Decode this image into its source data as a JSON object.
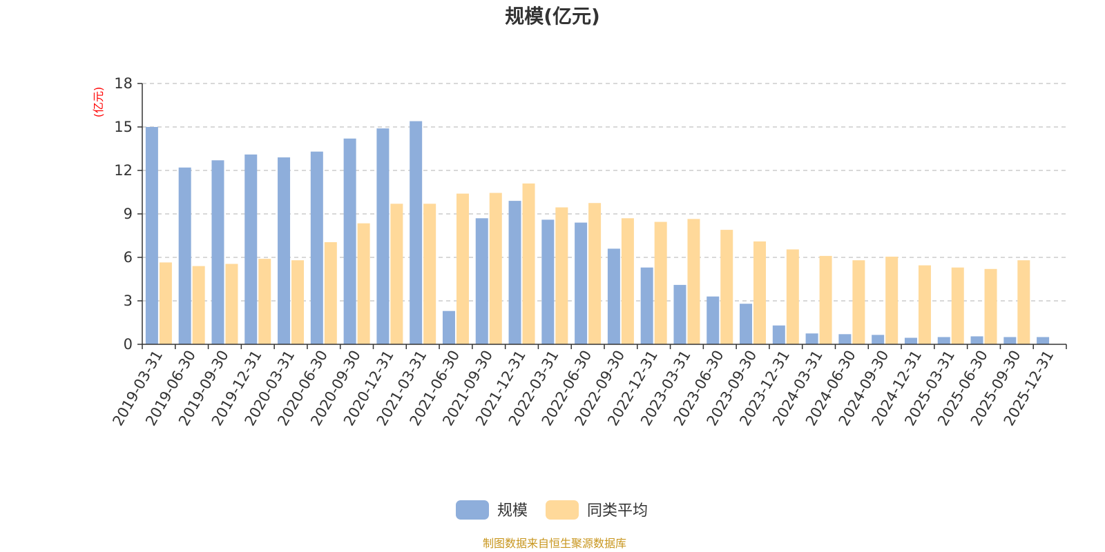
{
  "chart_data": {
    "type": "bar",
    "title": "规模(亿元)",
    "ylabel": "(亿元)",
    "xlabel": "",
    "ylim": [
      0,
      18
    ],
    "yticks": [
      0,
      3,
      6,
      9,
      12,
      15,
      18
    ],
    "grid": true,
    "legend_position": "bottom-center",
    "categories": [
      "2019-03-31",
      "2019-06-30",
      "2019-09-30",
      "2019-12-31",
      "2020-03-31",
      "2020-06-30",
      "2020-09-30",
      "2020-12-31",
      "2021-03-31",
      "2021-06-30",
      "2021-09-30",
      "2021-12-31",
      "2022-03-31",
      "2022-06-30",
      "2022-09-30",
      "2022-12-31",
      "2023-03-31",
      "2023-06-30",
      "2023-09-30",
      "2023-12-31",
      "2024-03-31",
      "2024-06-30",
      "2024-09-30",
      "2024-12-31",
      "2025-03-31",
      "2025-06-30",
      "2025-09-30",
      "2025-12-31"
    ],
    "series": [
      {
        "name": "规模",
        "color": "#8eaedb",
        "values": [
          15.0,
          12.2,
          12.7,
          13.1,
          12.9,
          13.3,
          14.2,
          14.9,
          15.4,
          2.3,
          8.7,
          9.9,
          8.6,
          8.4,
          6.6,
          5.3,
          4.1,
          3.3,
          2.8,
          1.3,
          0.75,
          0.7,
          0.65,
          0.45,
          0.5,
          0.55,
          0.5,
          0.5
        ]
      },
      {
        "name": "同类平均",
        "color": "#ffd99a",
        "values": [
          5.65,
          5.4,
          5.55,
          5.9,
          5.8,
          7.05,
          8.35,
          9.7,
          9.7,
          10.4,
          10.45,
          11.1,
          9.45,
          9.75,
          8.7,
          8.45,
          8.65,
          7.9,
          7.1,
          6.55,
          6.1,
          5.8,
          6.05,
          5.45,
          5.3,
          5.2,
          5.8,
          null
        ]
      }
    ],
    "source_note": "制图数据来自恒生聚源数据库"
  }
}
